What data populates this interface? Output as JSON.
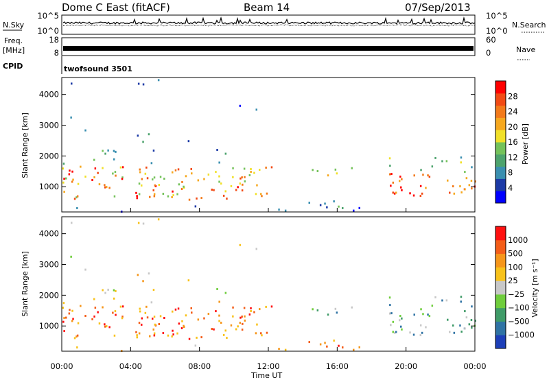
{
  "header": {
    "title": "Dome C East (fitACF)",
    "beam": "Beam 14",
    "date": "07/Sep/2013"
  },
  "colors": {
    "background": "#ffffff",
    "axis": "#000000"
  },
  "chart_data": [
    {
      "type": "line",
      "name": "noise-panel",
      "left_label": "N.Sky",
      "right_label": "N.Search",
      "left_ticks": [
        "10^5",
        "10^0"
      ],
      "right_ticks": [
        "10^5",
        "10^0"
      ]
    },
    {
      "type": "line",
      "name": "frequency-panel",
      "left_label": "Freq.",
      "left_unit": "[MHz]",
      "right_label": "Nave",
      "left_ticks": [
        "18",
        "8"
      ],
      "right_ticks": [
        "60",
        "0"
      ],
      "ylim_left": [
        8,
        18
      ],
      "ylim_right": [
        0,
        60
      ]
    },
    {
      "type": "table",
      "name": "cpid-panel",
      "label": "CPID",
      "value": "twofsound 3501"
    },
    {
      "type": "heatmap",
      "name": "power",
      "ylabel": "Slant Range [km]",
      "yticks": [
        1000,
        2000,
        3000,
        4000
      ],
      "ylim": [
        180,
        4550
      ],
      "xlim": [
        0,
        24
      ],
      "colorbar_label": "Power [dB]",
      "colorbar_ticks": [
        "28",
        "24",
        "20",
        "16",
        "12",
        "8",
        "4"
      ],
      "colorscale": [
        "#0000ff",
        "#1c3aa6",
        "#3a8fb0",
        "#4da36d",
        "#74c25a",
        "#f1e028",
        "#f6a81f",
        "#f37a1a",
        "#f24a14",
        "#ff0000"
      ]
    },
    {
      "type": "heatmap",
      "name": "velocity",
      "ylabel": "Slant Range [km]",
      "yticks": [
        1000,
        2000,
        3000,
        4000
      ],
      "ylim": [
        180,
        4550
      ],
      "xlim": [
        0,
        24
      ],
      "xlabel": "Time UT",
      "xticks": [
        "00:00",
        "04:00",
        "08:00",
        "12:00",
        "16:00",
        "20:00",
        "00:00"
      ],
      "colorbar_label": "Velocity [m s⁻¹]",
      "colorbar_ticks": [
        "1000",
        "500",
        "100",
        "25",
        "−25",
        "−100",
        "−500",
        "−1000"
      ],
      "colorscale": [
        "#1d3fb8",
        "#2f73a4",
        "#3f9b68",
        "#6fcd3c",
        "#c8c8c8",
        "#f8c21a",
        "#f6961a",
        "#f45d18",
        "#ff1010"
      ]
    }
  ]
}
